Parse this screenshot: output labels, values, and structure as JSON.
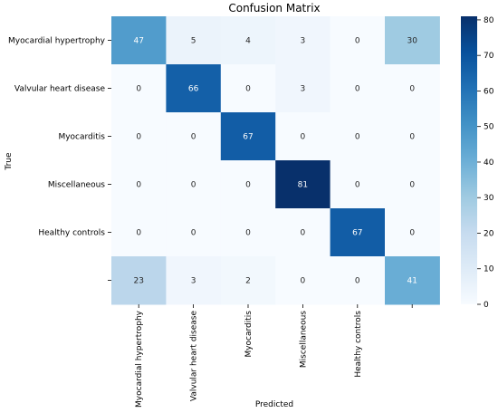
{
  "chart_data": {
    "type": "heatmap",
    "title": "Confusion Matrix",
    "xlabel": "Predicted",
    "ylabel": "True",
    "row_labels": [
      "Myocardial hypertrophy",
      "Valvular heart disease",
      "Myocarditis",
      "Miscellaneous",
      "Healthy controls",
      ""
    ],
    "col_labels": [
      "Myocardial hypertrophy",
      "Valvular heart disease",
      "Myocarditis",
      "Miscellaneous",
      "Healthy controls",
      ""
    ],
    "values": [
      [
        47,
        5,
        4,
        3,
        0,
        30
      ],
      [
        0,
        66,
        0,
        3,
        0,
        0
      ],
      [
        0,
        0,
        67,
        0,
        0,
        0
      ],
      [
        0,
        0,
        0,
        81,
        0,
        0
      ],
      [
        0,
        0,
        0,
        0,
        67,
        0
      ],
      [
        23,
        3,
        2,
        0,
        0,
        41
      ]
    ],
    "colorbar": {
      "min": 0,
      "max": 81,
      "ticks": [
        0,
        10,
        20,
        30,
        40,
        50,
        60,
        70,
        80
      ],
      "colormap": "Blues"
    },
    "colors": {
      "low": "#f7fbff",
      "high": "#08306b",
      "text_dark": "#262626",
      "text_light": "#ffffff"
    }
  }
}
